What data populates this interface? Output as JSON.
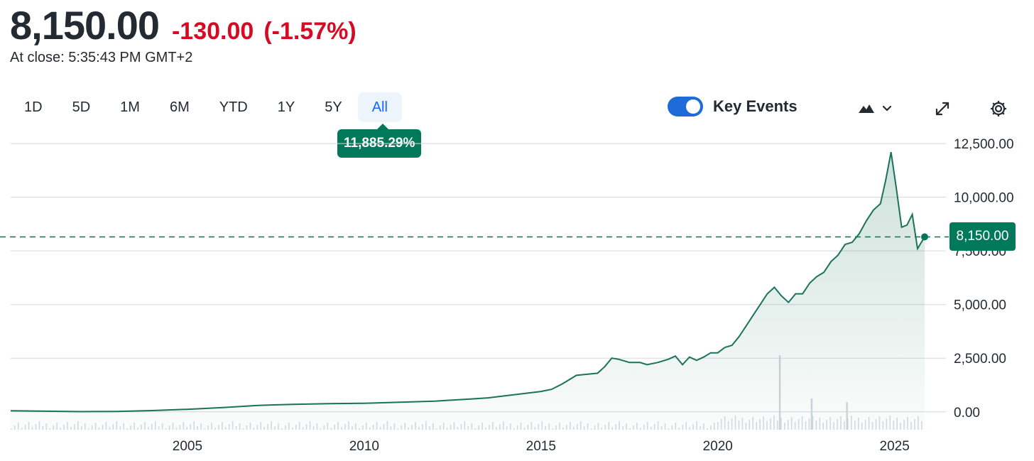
{
  "quote": {
    "price": "8,150.00",
    "change": "-130.00",
    "change_pct": "(-1.57%)",
    "close_time": "At close: 5:35:43 PM GMT+2",
    "change_color": "#d60a22"
  },
  "ranges": [
    {
      "label": "1D",
      "active": false
    },
    {
      "label": "5D",
      "active": false
    },
    {
      "label": "1M",
      "active": false
    },
    {
      "label": "6M",
      "active": false
    },
    {
      "label": "YTD",
      "active": false
    },
    {
      "label": "1Y",
      "active": false
    },
    {
      "label": "5Y",
      "active": false
    },
    {
      "label": "All",
      "active": true
    }
  ],
  "period_return": "11,885.29%",
  "toolbar": {
    "key_events_label": "Key Events",
    "key_events_on": true,
    "chart_type_icon": "mountain-chart-icon",
    "dropdown_icon": "chevron-down-icon",
    "expand_icon": "expand-icon",
    "settings_icon": "gear-icon"
  },
  "last_price_label": "8,150.00",
  "colors": {
    "line": "#1a7358",
    "accent": "#00795a",
    "active_tab": "#0f69ff",
    "toggle": "#1c6bd8",
    "negative": "#d60a22"
  },
  "chart_data": {
    "type": "area",
    "title": "",
    "xlabel": "",
    "ylabel": "",
    "ylim": [
      -1000,
      12900
    ],
    "xlim": [
      2000.0,
      2025.85
    ],
    "y_ticks": [
      "12,500.00",
      "10,000.00",
      "7,500.00",
      "5,000.00",
      "2,500.00",
      "0.00"
    ],
    "y_tick_values": [
      12500,
      10000,
      7500,
      5000,
      2500,
      0
    ],
    "x_ticks": [
      "2005",
      "2010",
      "2015",
      "2020",
      "2025"
    ],
    "x_tick_values": [
      2005,
      2010,
      2015,
      2020,
      2025
    ],
    "grid": true,
    "reference_line": {
      "value": 8150,
      "style": "dashed"
    },
    "series": [
      {
        "x": [
          2000.0,
          2001.0,
          2002.0,
          2003.0,
          2004.0,
          2005.0,
          2006.0,
          2007.0,
          2008.0,
          2009.0,
          2010.0,
          2011.0,
          2012.0,
          2012.5,
          2013.0,
          2013.5,
          2014.0,
          2014.5,
          2015.0,
          2015.3,
          2015.6,
          2015.8,
          2016.0,
          2016.3,
          2016.6,
          2016.8,
          2017.0,
          2017.2,
          2017.5,
          2017.8,
          2018.0,
          2018.3,
          2018.6,
          2018.8,
          2019.0,
          2019.2,
          2019.4,
          2019.6,
          2019.8,
          2020.0,
          2020.2,
          2020.4,
          2020.6,
          2020.8,
          2021.0,
          2021.2,
          2021.4,
          2021.6,
          2021.8,
          2022.0,
          2022.2,
          2022.4,
          2022.6,
          2022.8,
          2023.0,
          2023.2,
          2023.4,
          2023.6,
          2023.8,
          2024.0,
          2024.2,
          2024.4,
          2024.6,
          2024.75,
          2024.9,
          2025.05,
          2025.2,
          2025.35,
          2025.5,
          2025.65,
          2025.85
        ],
        "values": [
          50,
          30,
          10,
          20,
          60,
          120,
          200,
          300,
          350,
          380,
          400,
          450,
          500,
          550,
          600,
          650,
          750,
          850,
          950,
          1050,
          1300,
          1500,
          1700,
          1750,
          1800,
          2100,
          2500,
          2450,
          2300,
          2300,
          2200,
          2300,
          2450,
          2600,
          2200,
          2550,
          2400,
          2550,
          2750,
          2750,
          3000,
          3100,
          3500,
          4000,
          4500,
          5000,
          5500,
          5800,
          5400,
          5100,
          5500,
          5500,
          6000,
          6300,
          6500,
          7000,
          7300,
          7800,
          7900,
          8300,
          8900,
          9400,
          9700,
          10800,
          12100,
          10400,
          8600,
          8700,
          9200,
          7600,
          8150
        ]
      }
    ],
    "volume": {
      "x": [
        2021.75,
        2022.65,
        2023.65
      ],
      "values": [
        100,
        42,
        37
      ]
    }
  }
}
